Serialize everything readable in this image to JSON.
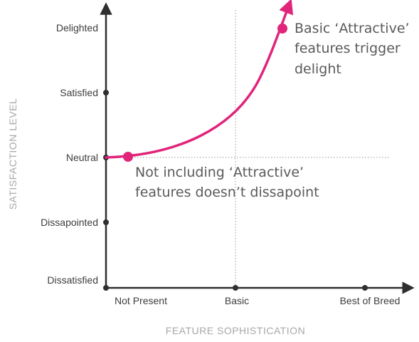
{
  "axes": {
    "y_title": "SATISFACTION LEVEL",
    "x_title": "FEATURE SOPHISTICATION",
    "y_levels": [
      "Dissatisfied",
      "Dissapointed",
      "Neutral",
      "Satisfied",
      "Delighted"
    ],
    "x_levels": [
      "Not Present",
      "Basic",
      "Best of Breed"
    ]
  },
  "curve": {
    "label": "Attractive features curve",
    "color": "#e0257a",
    "start_point": {
      "x": "Not Present",
      "y": "Neutral"
    },
    "end_point": {
      "x": "past Basic",
      "y": "Delighted"
    }
  },
  "annotations": {
    "top": [
      "Basic ‘Attractive’",
      "features trigger",
      "delight"
    ],
    "bottom": [
      "Not including ‘Attractive’",
      "features doesn’t dissapoint"
    ]
  },
  "colors": {
    "axis": "#2f2f2f",
    "guide": "#9a9a9a",
    "accent": "#e0257a"
  }
}
